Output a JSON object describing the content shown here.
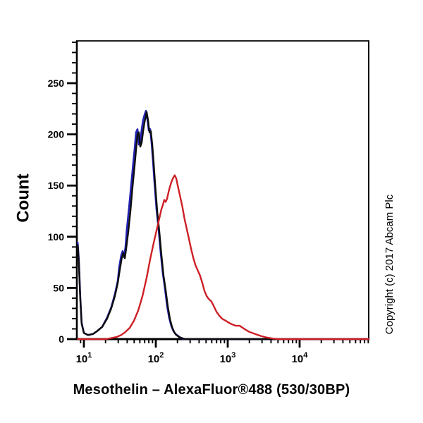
{
  "figure": {
    "y_axis_title": "Count",
    "x_axis_title": "Mesothelin – AlexaFluor®488 (530/30BP)",
    "copyright_text": "Copyright (c) 2017 Abcam Plc",
    "background_color": "#ffffff",
    "axis_color": "#000000"
  },
  "chart_data": {
    "type": "line",
    "subtype": "flow-cytometry-histogram",
    "title": "",
    "xlabel": "Mesothelin – AlexaFluor®488 (530/30BP)",
    "ylabel": "Count",
    "x_scale": "log",
    "xlim": [
      7.9,
      91400
    ],
    "ylim": [
      0,
      291
    ],
    "grid": false,
    "legend": null,
    "y_major_ticks": [
      0,
      50,
      100,
      150,
      200,
      250
    ],
    "y_minor_step": 10,
    "y_minor_max": 290,
    "x_major_ticks": [
      {
        "base": "10",
        "exponent": "1",
        "value": 10
      },
      {
        "base": "10",
        "exponent": "2",
        "value": 100
      },
      {
        "base": "10",
        "exponent": "3",
        "value": 1000
      },
      {
        "base": "10",
        "exponent": "4",
        "value": 10000
      }
    ],
    "x_minor_multiples": [
      2,
      3,
      4,
      5,
      6,
      7,
      8,
      9
    ],
    "x_minor_decades": [
      1,
      10,
      100,
      1000,
      10000
    ],
    "series": [
      {
        "name": "blue-curve",
        "color": "#2222b4",
        "stroke_width": 2.6,
        "points": [
          [
            8.2,
            94
          ],
          [
            8.5,
            78
          ],
          [
            8.9,
            42
          ],
          [
            9.3,
            16
          ],
          [
            10,
            6
          ],
          [
            11.4,
            4
          ],
          [
            13.4,
            5
          ],
          [
            15.4,
            8
          ],
          [
            18,
            12
          ],
          [
            21,
            21
          ],
          [
            24,
            31
          ],
          [
            27,
            44
          ],
          [
            29.6,
            57
          ],
          [
            30.9,
            70
          ],
          [
            33.1,
            82
          ],
          [
            34.6,
            86
          ],
          [
            36.2,
            80
          ],
          [
            37.9,
            90
          ],
          [
            39.6,
            108
          ],
          [
            42.4,
            128
          ],
          [
            45.4,
            150
          ],
          [
            48.6,
            172
          ],
          [
            50.8,
            186
          ],
          [
            53.1,
            202
          ],
          [
            55.6,
            205
          ],
          [
            58.2,
            190
          ],
          [
            60.8,
            193
          ],
          [
            63.7,
            205
          ],
          [
            66.6,
            214
          ],
          [
            69.7,
            219
          ],
          [
            72.9,
            223
          ],
          [
            76.3,
            215
          ],
          [
            79.8,
            204
          ],
          [
            83.5,
            205
          ],
          [
            87.3,
            192
          ],
          [
            91.4,
            174
          ],
          [
            95.6,
            154
          ],
          [
            102.3,
            127
          ],
          [
            109.4,
            107
          ],
          [
            117,
            84
          ],
          [
            125.2,
            64
          ],
          [
            133.9,
            50
          ],
          [
            143.2,
            33
          ],
          [
            153.2,
            21
          ],
          [
            163.9,
            13
          ],
          [
            175.3,
            8
          ],
          [
            187.5,
            5
          ],
          [
            205.1,
            3
          ],
          [
            224.4,
            1
          ],
          [
            251.2,
            0
          ],
          [
            91400,
            0
          ]
        ]
      },
      {
        "name": "black-curve",
        "color": "#0d0d0d",
        "stroke_width": 2.4,
        "points": [
          [
            8.2,
            92
          ],
          [
            8.5,
            75
          ],
          [
            8.9,
            40
          ],
          [
            9.3,
            15
          ],
          [
            10,
            6
          ],
          [
            11.4,
            4
          ],
          [
            13.4,
            5
          ],
          [
            15.4,
            8
          ],
          [
            18,
            12
          ],
          [
            21,
            20
          ],
          [
            24,
            30
          ],
          [
            27,
            42
          ],
          [
            29.6,
            55
          ],
          [
            31.6,
            68
          ],
          [
            33.8,
            80
          ],
          [
            35.4,
            84
          ],
          [
            37.1,
            79
          ],
          [
            38.7,
            88
          ],
          [
            41.5,
            105
          ],
          [
            44.4,
            125
          ],
          [
            47.4,
            148
          ],
          [
            50.8,
            170
          ],
          [
            53.1,
            185
          ],
          [
            55.6,
            200
          ],
          [
            58.2,
            202
          ],
          [
            60.8,
            188
          ],
          [
            63.7,
            192
          ],
          [
            66.6,
            203
          ],
          [
            69.7,
            212
          ],
          [
            72.9,
            218
          ],
          [
            74.6,
            222
          ],
          [
            78,
            214
          ],
          [
            81.6,
            202
          ],
          [
            85.4,
            203
          ],
          [
            89.3,
            190
          ],
          [
            93.5,
            172
          ],
          [
            97.8,
            152
          ],
          [
            104.6,
            125
          ],
          [
            112,
            105
          ],
          [
            119.7,
            82
          ],
          [
            128.2,
            62
          ],
          [
            137.1,
            48
          ],
          [
            146.9,
            32
          ],
          [
            157,
            20
          ],
          [
            168,
            12
          ],
          [
            179.9,
            7
          ],
          [
            192.4,
            4
          ],
          [
            210.9,
            2
          ],
          [
            230.7,
            1
          ],
          [
            258.3,
            0
          ],
          [
            91400,
            0
          ]
        ]
      },
      {
        "name": "red-curve",
        "color": "#cd2026",
        "stroke_width": 2.4,
        "points": [
          [
            8.2,
            0
          ],
          [
            20.1,
            0
          ],
          [
            24.1,
            1
          ],
          [
            28.3,
            2
          ],
          [
            33.1,
            4
          ],
          [
            37.9,
            7
          ],
          [
            43.4,
            11
          ],
          [
            49.7,
            18
          ],
          [
            57,
            28
          ],
          [
            65.2,
            42
          ],
          [
            74.6,
            60
          ],
          [
            83.5,
            78
          ],
          [
            93.5,
            94
          ],
          [
            102.3,
            106
          ],
          [
            112,
            118
          ],
          [
            119.7,
            127
          ],
          [
            125.2,
            131
          ],
          [
            131,
            136
          ],
          [
            137.1,
            134
          ],
          [
            143.2,
            137
          ],
          [
            153.2,
            146
          ],
          [
            163.9,
            153
          ],
          [
            175.3,
            158
          ],
          [
            183.2,
            160
          ],
          [
            192.4,
            157
          ],
          [
            202,
            150
          ],
          [
            217,
            140
          ],
          [
            233,
            130
          ],
          [
            250.2,
            118
          ],
          [
            268.7,
            108
          ],
          [
            288.6,
            98
          ],
          [
            309.9,
            88
          ],
          [
            332.9,
            79
          ],
          [
            357.5,
            72
          ],
          [
            383.9,
            67
          ],
          [
            412.3,
            62
          ],
          [
            442.8,
            55
          ],
          [
            475.6,
            47
          ],
          [
            510.7,
            42
          ],
          [
            548.5,
            39
          ],
          [
            589,
            37
          ],
          [
            632.6,
            33
          ],
          [
            694,
            27
          ],
          [
            761.4,
            23
          ],
          [
            835.3,
            20
          ],
          [
            935,
            18
          ],
          [
            1100,
            15
          ],
          [
            1300,
            13
          ],
          [
            1470,
            13
          ],
          [
            1700,
            10
          ],
          [
            2000,
            7
          ],
          [
            2400,
            5
          ],
          [
            2900,
            3
          ],
          [
            3500,
            1.5
          ],
          [
            4300,
            0.5
          ],
          [
            5200,
            0
          ],
          [
            91400,
            0
          ]
        ]
      }
    ]
  }
}
